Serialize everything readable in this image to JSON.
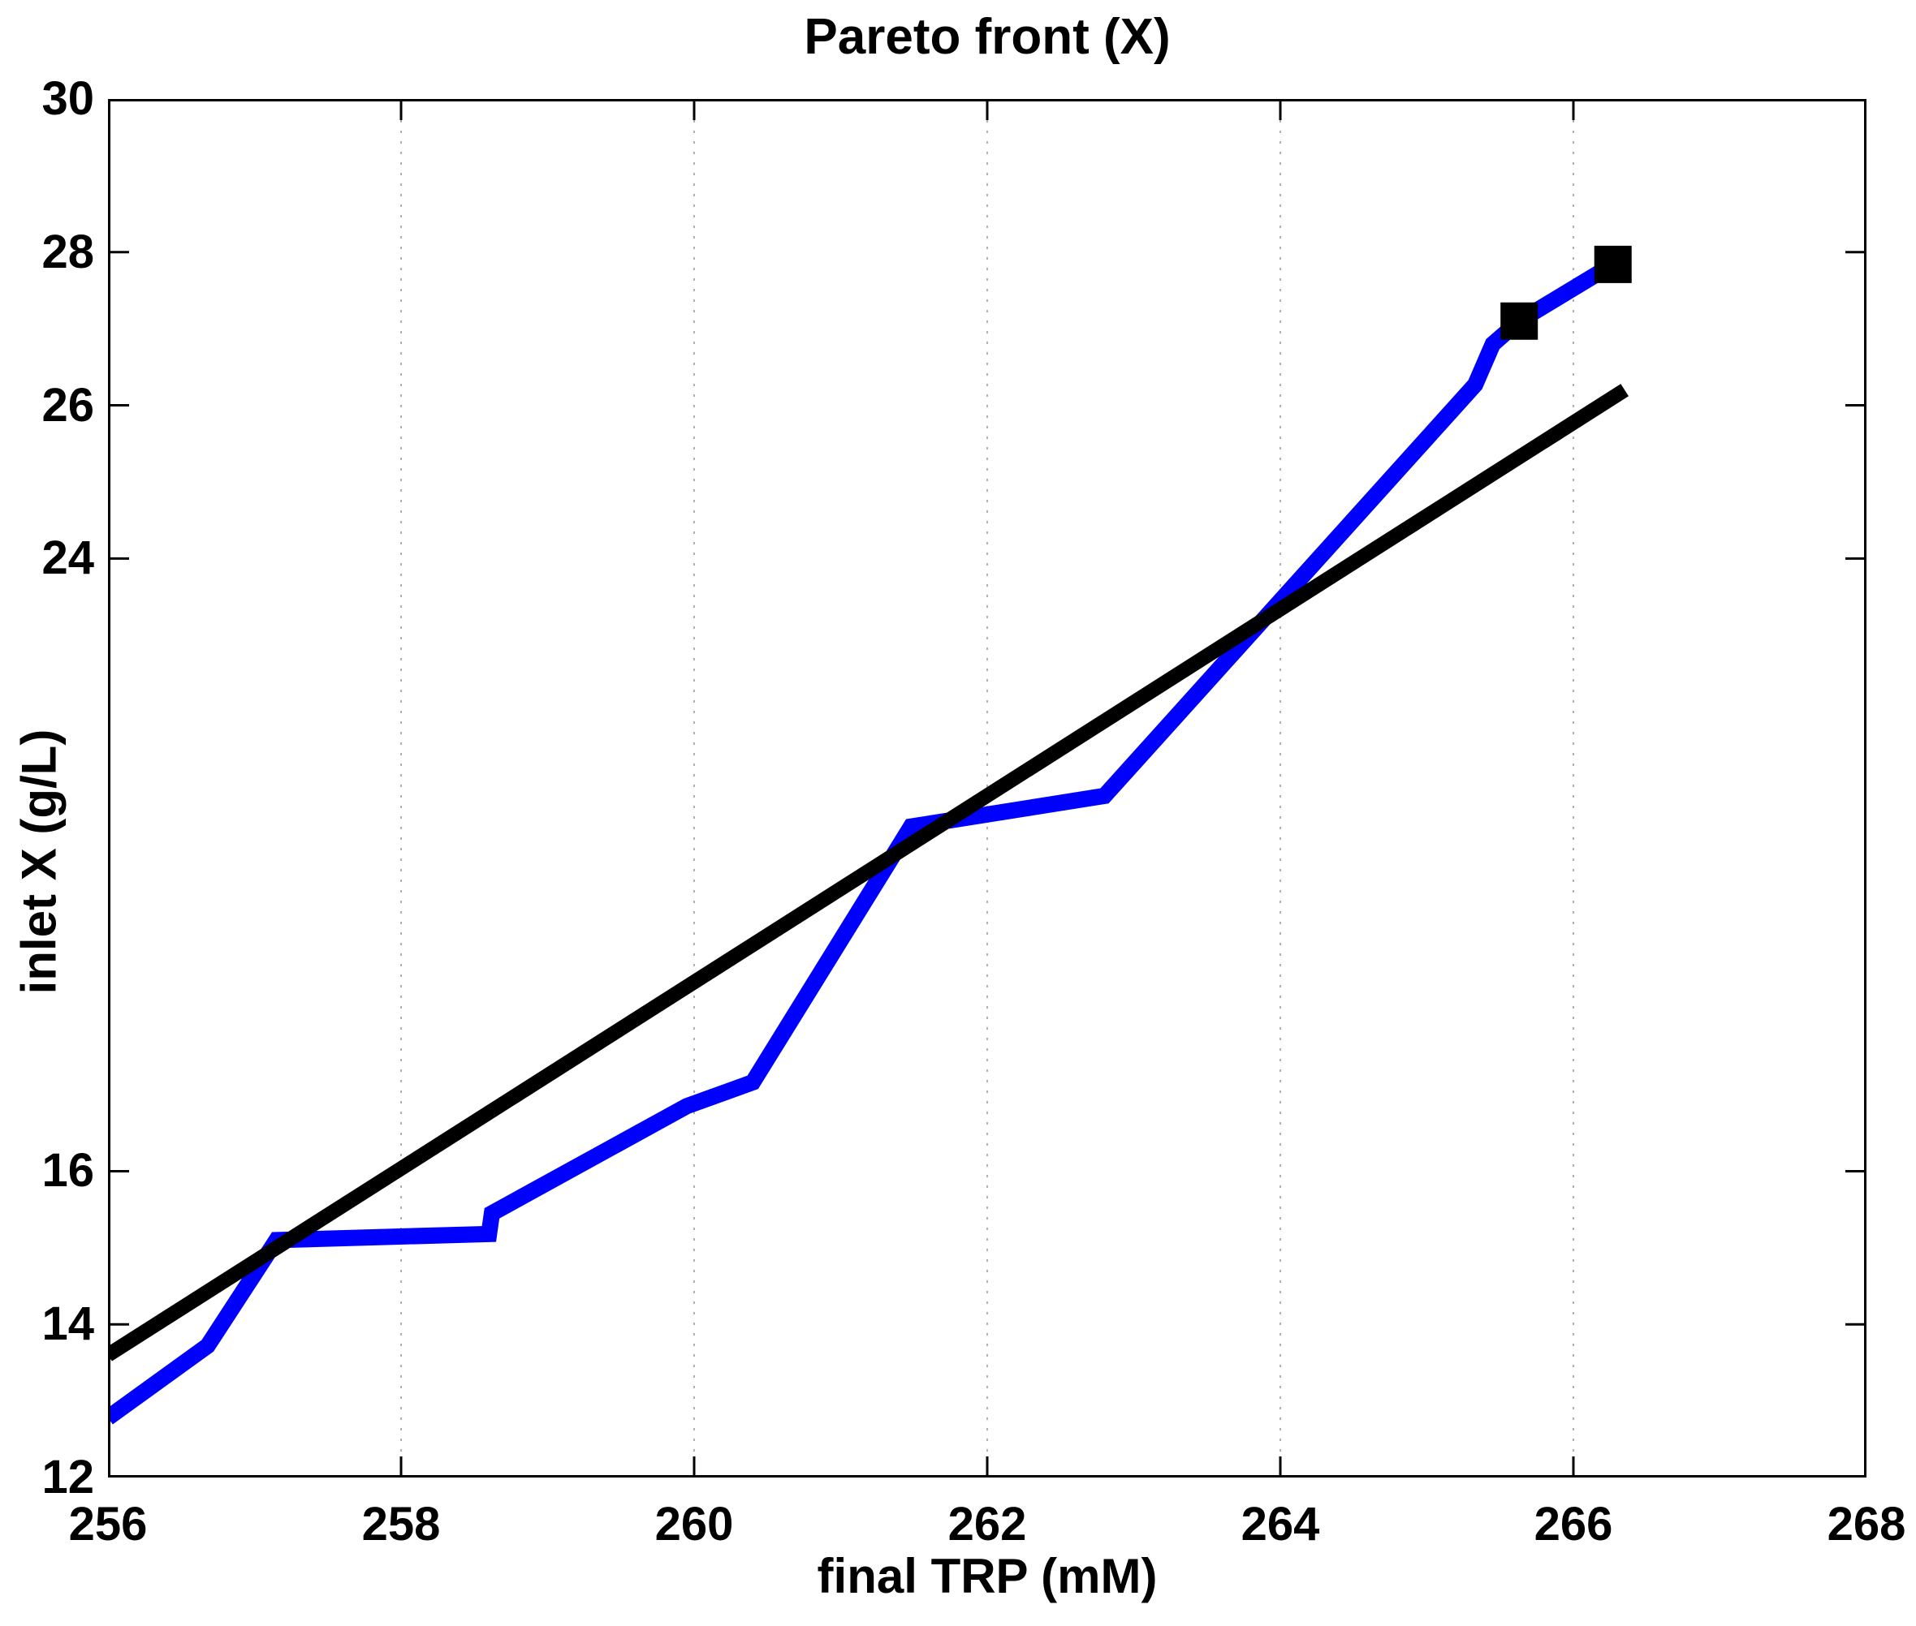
{
  "title": "Pareto front (X)",
  "xlabel": "final TRP (mM)",
  "ylabel": "inlet X (g/L)",
  "colors": {
    "pareto_line": "#0000ff",
    "reference_line": "#000000",
    "marker": "#000000",
    "gridline": "#b0b0b0",
    "axis": "#000000",
    "background": "#ffffff"
  },
  "chart_data": {
    "type": "line",
    "title": "Pareto front (X)",
    "xlabel": "final TRP (mM)",
    "ylabel": "inlet X (g/L)",
    "xlim": [
      256,
      268
    ],
    "ylim": [
      12,
      30
    ],
    "xticks": [
      256,
      258,
      260,
      262,
      264,
      266,
      268
    ],
    "yticks": [
      12,
      14,
      16,
      24,
      26,
      28,
      30
    ],
    "grid": "vertical-dotted-only",
    "legend": "none",
    "series": [
      {
        "name": "pareto-front",
        "color": "#0000ff",
        "line_width": 20,
        "points": [
          [
            256.0,
            12.78
          ],
          [
            256.68,
            13.72
          ],
          [
            257.15,
            15.1
          ],
          [
            258.6,
            15.18
          ],
          [
            258.62,
            15.45
          ],
          [
            259.95,
            16.85
          ],
          [
            260.4,
            17.16
          ],
          [
            261.48,
            20.5
          ],
          [
            262.8,
            20.9
          ],
          [
            265.33,
            26.27
          ],
          [
            265.45,
            26.8
          ],
          [
            265.63,
            27.1
          ],
          [
            266.27,
            27.84
          ]
        ]
      },
      {
        "name": "reference-line",
        "color": "#000000",
        "line_width": 18,
        "points": [
          [
            256.0,
            13.6
          ],
          [
            266.35,
            26.2
          ]
        ]
      },
      {
        "name": "selected-solutions",
        "color": "#000000",
        "marker": "square",
        "marker_size": 46,
        "points": [
          [
            265.63,
            27.1
          ],
          [
            266.27,
            27.84
          ]
        ]
      }
    ]
  }
}
